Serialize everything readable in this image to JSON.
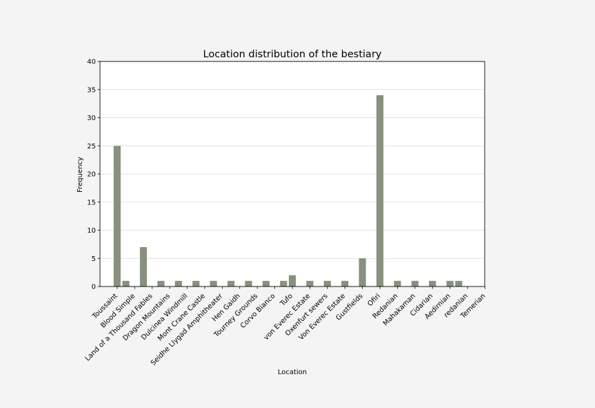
{
  "chart_data": {
    "type": "bar",
    "title": "Location distribution of the bestiary",
    "xlabel": "Location",
    "ylabel": "Frequency",
    "ylim": [
      0,
      40
    ],
    "yticks": [
      0,
      5,
      10,
      15,
      20,
      25,
      30,
      35,
      40
    ],
    "grid": "horizontal",
    "bar_color": "#86917e",
    "categories": [
      "Toussaint",
      "Blood Simple",
      "Land of a Thousand Fables",
      "Dragon Mountains",
      "Dulcinea Windmill",
      "Mont Crane Castle",
      "Seidhe Llygad Amphitheater",
      "Hen Gaidh",
      "Tourney Grounds",
      "Corvo Bianco",
      "Tufo",
      "von Everec Estate",
      "Oxenfurt sewers",
      "Von Everec Estate",
      "Gustfields",
      "Ofiri",
      "Redanian",
      "Mahakaman",
      "Cidarian",
      "Aedirnian",
      "redanian",
      "Temerian"
    ],
    "bars": [
      {
        "x": 0,
        "value": 25
      },
      {
        "x": 0.5,
        "value": 1
      },
      {
        "x": 1.5,
        "value": 7
      },
      {
        "x": 2.5,
        "value": 1
      },
      {
        "x": 3.5,
        "value": 1
      },
      {
        "x": 4.5,
        "value": 1
      },
      {
        "x": 5.5,
        "value": 1
      },
      {
        "x": 6.5,
        "value": 1
      },
      {
        "x": 7.5,
        "value": 1
      },
      {
        "x": 8.5,
        "value": 1
      },
      {
        "x": 9.5,
        "value": 1
      },
      {
        "x": 10,
        "value": 2
      },
      {
        "x": 11,
        "value": 1
      },
      {
        "x": 12,
        "value": 1
      },
      {
        "x": 13,
        "value": 1
      },
      {
        "x": 14,
        "value": 5
      },
      {
        "x": 15,
        "value": 34
      },
      {
        "x": 16,
        "value": 1
      },
      {
        "x": 17,
        "value": 1
      },
      {
        "x": 18,
        "value": 1
      },
      {
        "x": 19,
        "value": 1
      },
      {
        "x": 19.5,
        "value": 1
      }
    ]
  }
}
